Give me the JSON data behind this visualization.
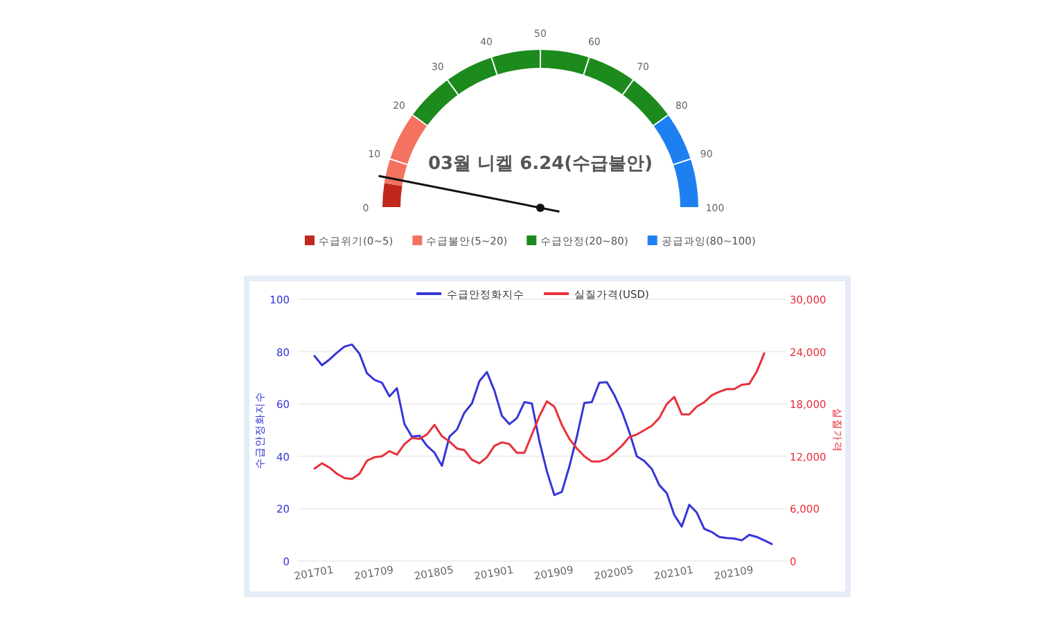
{
  "chart_data": [
    {
      "type": "donut",
      "title": "03월 니켈 6.24(수급불안)",
      "categories": [
        "수급위기(0~5)",
        "수급불안(5~20)",
        "수급안정(20~80)",
        "공급과잉(80~100)"
      ],
      "values": [
        5,
        15,
        60,
        20
      ],
      "colors": [
        "#c0281e",
        "#f47360",
        "#1c8a1c",
        "#1e80f0"
      ],
      "needle": "수급불안(5~20)",
      "annotations": [
        "0",
        "10",
        "20",
        "30",
        "40",
        "50",
        "60",
        "70",
        "80",
        "90",
        "100"
      ],
      "legend": "bottom"
    },
    {
      "type": "line",
      "categories": [
        "201701",
        null,
        null,
        null,
        null,
        null,
        null,
        null,
        "201709",
        null,
        null,
        null,
        null,
        null,
        null,
        null,
        "201805",
        null,
        null,
        null,
        null,
        null,
        null,
        null,
        "201901",
        null,
        null,
        null,
        null,
        null,
        null,
        null,
        "201909",
        null,
        null,
        null,
        null,
        null,
        null,
        null,
        "202005",
        null,
        null,
        null,
        null,
        null,
        null,
        null,
        "202101",
        null,
        null,
        null,
        null,
        null,
        null,
        null,
        "202109",
        null,
        null,
        null,
        null,
        null
      ],
      "series": [
        {
          "name": "수급안정화지수",
          "color": "#3535d8",
          "values": [
            78.3,
            74.8,
            77,
            79.6,
            81.9,
            82.7,
            79.2,
            71.7,
            69.2,
            68.1,
            62.9,
            66,
            52.3,
            47.5,
            47.9,
            44,
            41.4,
            36.4,
            47.5,
            50.2,
            56.7,
            60.2,
            68.7,
            72.2,
            65.1,
            55.5,
            52.3,
            54.6,
            60.7,
            60.2,
            45.8,
            34.3,
            25.2,
            26.4,
            36.1,
            47.5,
            60.4,
            60.7,
            68.1,
            68.3,
            63.4,
            57.2,
            49.3,
            40,
            38.2,
            35.2,
            29,
            25.9,
            17.6,
            13.2,
            21.5,
            18.5,
            12.3,
            11.1,
            9.2,
            8.8,
            8.6,
            7.9,
            10,
            9.2,
            7.9,
            6.5
          ]
        },
        {
          "name": "실질가격(USD)",
          "color": "#e8303a",
          "axis": "y2",
          "values": [
            10600,
            11200,
            10700,
            10000,
            9500,
            9400,
            10000,
            11500,
            11900,
            12000,
            12600,
            12200,
            13400,
            14100,
            14000,
            14500,
            15600,
            14300,
            13700,
            12900,
            12700,
            11600,
            11200,
            11900,
            13200,
            13600,
            13400,
            12400,
            12400,
            14500,
            16600,
            18300,
            17700,
            15600,
            14000,
            12900,
            12000,
            11400,
            11400,
            11700,
            12400,
            13200,
            14200,
            14500,
            15000,
            15500,
            16400,
            18000,
            18800,
            16800,
            16800,
            17700,
            18200,
            19000,
            19400,
            19700,
            19700,
            20200,
            20300,
            21700,
            23800,
            null
          ]
        }
      ],
      "ylabel": "수급안정화지수",
      "y2label": "실질가격",
      "ylim": [
        0,
        100
      ],
      "yticks": [
        0,
        20,
        40,
        60,
        80,
        100
      ],
      "y2lim": [
        0,
        30000
      ],
      "y2ticks": [
        0,
        {
          "value": 6000,
          "label": "6,000"
        },
        {
          "value": 12000,
          "label": "12,000"
        },
        {
          "value": 18000,
          "label": "18,000"
        },
        {
          "value": 24000,
          "label": "24,000"
        },
        {
          "value": 30000,
          "label": "30,000"
        }
      ],
      "grid": "y",
      "legend": "top",
      "marker": "none",
      "line_style": "solid"
    }
  ]
}
